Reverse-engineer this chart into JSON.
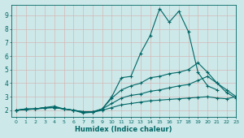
{
  "xlabel": "Humidex (Indice chaleur)",
  "ylabel": "",
  "bg_color": "#cde8e8",
  "grid_color": "#c0d8d8",
  "line_color": "#006666",
  "xlim": [
    -0.5,
    23
  ],
  "ylim": [
    1.5,
    9.8
  ],
  "xticks": [
    0,
    1,
    2,
    3,
    4,
    5,
    6,
    7,
    8,
    9,
    10,
    11,
    12,
    13,
    14,
    15,
    16,
    17,
    18,
    19,
    20,
    21,
    22,
    23
  ],
  "yticks": [
    2,
    3,
    4,
    5,
    6,
    7,
    8,
    9
  ],
  "series": [
    {
      "x": [
        0,
        1,
        2,
        3,
        4,
        5,
        6,
        7,
        8,
        9,
        10,
        11,
        12,
        13,
        14,
        15,
        16,
        17,
        18,
        19,
        20,
        21
      ],
      "y": [
        2.0,
        2.1,
        2.1,
        2.2,
        2.2,
        2.1,
        2.0,
        1.8,
        1.85,
        2.1,
        3.0,
        4.4,
        4.5,
        6.2,
        7.5,
        9.5,
        8.5,
        9.3,
        7.8,
        4.8,
        3.8,
        3.5
      ]
    },
    {
      "x": [
        0,
        1,
        2,
        3,
        4,
        5,
        6,
        7,
        8,
        9,
        10,
        11,
        12,
        13,
        14,
        15,
        16,
        17,
        18,
        19,
        20,
        21,
        22,
        23
      ],
      "y": [
        2.0,
        2.1,
        2.1,
        2.2,
        2.3,
        2.1,
        2.0,
        1.9,
        1.85,
        2.1,
        2.9,
        3.5,
        3.8,
        4.0,
        4.4,
        4.5,
        4.7,
        4.8,
        5.0,
        5.5,
        4.8,
        4.0,
        3.5,
        3.0
      ]
    },
    {
      "x": [
        0,
        1,
        2,
        3,
        4,
        5,
        6,
        7,
        8,
        9,
        10,
        11,
        12,
        13,
        14,
        15,
        16,
        17,
        18,
        19,
        20,
        21,
        22,
        23
      ],
      "y": [
        2.0,
        2.05,
        2.1,
        2.2,
        2.2,
        2.1,
        2.0,
        1.9,
        1.9,
        2.1,
        2.5,
        2.9,
        3.1,
        3.2,
        3.4,
        3.5,
        3.65,
        3.8,
        3.9,
        4.2,
        4.5,
        4.0,
        3.3,
        2.9
      ]
    },
    {
      "x": [
        0,
        1,
        2,
        3,
        4,
        5,
        6,
        7,
        8,
        9,
        10,
        11,
        12,
        13,
        14,
        15,
        16,
        17,
        18,
        19,
        20,
        21,
        22,
        23
      ],
      "y": [
        2.0,
        2.05,
        2.1,
        2.15,
        2.2,
        2.1,
        2.0,
        1.85,
        1.85,
        2.0,
        2.2,
        2.4,
        2.5,
        2.6,
        2.7,
        2.75,
        2.8,
        2.85,
        2.9,
        2.95,
        3.0,
        2.9,
        2.85,
        3.0
      ]
    }
  ]
}
